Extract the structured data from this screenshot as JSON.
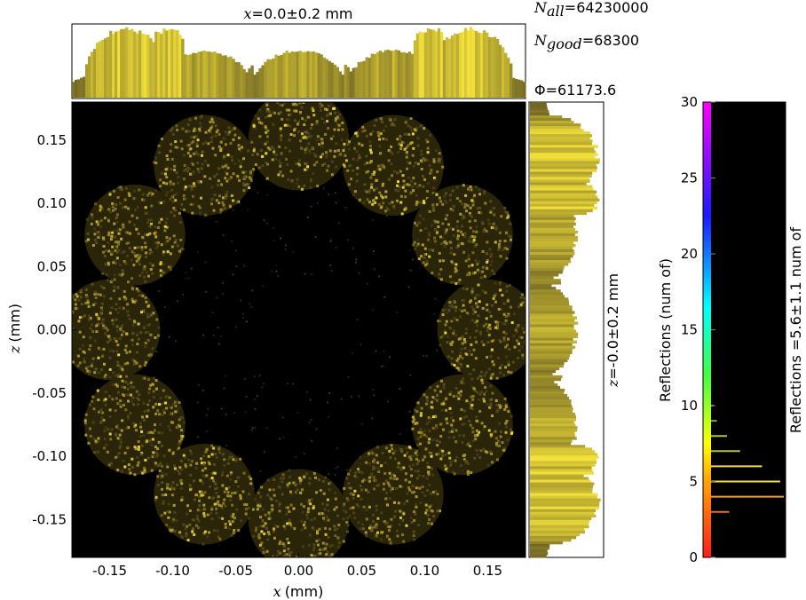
{
  "chart_data": {
    "type": "heatmap",
    "main": {
      "xlabel_var": "x",
      "xlabel_unit": "(mm)",
      "ylabel_var": "z",
      "ylabel_unit": "(mm)",
      "xlim": [
        -0.18,
        0.18
      ],
      "ylim": [
        -0.18,
        0.18
      ],
      "xticks": [
        -0.15,
        -0.1,
        -0.05,
        0.0,
        0.05,
        0.1,
        0.15
      ],
      "xtick_labels": [
        "-0.15",
        "-0.10",
        "-0.05",
        "0.00",
        "0.05",
        "0.10",
        "0.15"
      ],
      "yticks": [
        0.15,
        0.1,
        0.05,
        0.0,
        -0.05,
        -0.1,
        -0.15
      ],
      "ytick_labels": [
        "0.15",
        "0.10",
        "0.05",
        "0.00",
        "-0.05",
        "-0.10",
        "-0.15"
      ],
      "pattern_centers": [
        [
          0.0,
          0.15
        ],
        [
          0.075,
          0.13
        ],
        [
          0.13,
          0.075
        ],
        [
          0.15,
          0.0
        ],
        [
          0.13,
          -0.075
        ],
        [
          0.075,
          -0.13
        ],
        [
          0.0,
          -0.15
        ],
        [
          -0.075,
          -0.13
        ],
        [
          -0.13,
          -0.075
        ],
        [
          -0.15,
          0.0
        ],
        [
          -0.13,
          0.075
        ],
        [
          -0.075,
          0.13
        ]
      ],
      "pattern_radius": 0.04,
      "background": "#000000"
    },
    "top_histogram": {
      "title_var": "x",
      "title_rest": "=0.0±0.2 mm"
    },
    "side_histogram": {
      "label_var": "z",
      "label_rest": "=-0.0±0.2 mm"
    },
    "stats": {
      "n_all_sym": "N",
      "n_all_sub": "all",
      "n_all_val": "=64230000",
      "n_good_sym": "N",
      "n_good_sub": "good",
      "n_good_val": "=68300",
      "phi_sym": "Φ",
      "phi_val": "=61173.6"
    },
    "colorbar": {
      "ylabel": "Reflections (num of)",
      "ylim": [
        0,
        30
      ],
      "ticks": [
        0,
        5,
        10,
        15,
        20,
        25,
        30
      ],
      "tick_labels": [
        "0",
        "5",
        "10",
        "15",
        "20",
        "25",
        "30"
      ],
      "side_label": "Reflections =5.6±1.1 num of",
      "histogram": [
        {
          "level": 3,
          "count": 0.25
        },
        {
          "level": 4,
          "count": 1.0
        },
        {
          "level": 5,
          "count": 0.95
        },
        {
          "level": 6,
          "count": 0.7
        },
        {
          "level": 7,
          "count": 0.4
        },
        {
          "level": 8,
          "count": 0.22
        },
        {
          "level": 9,
          "count": 0.08
        },
        {
          "level": 10,
          "count": 0.03
        }
      ]
    },
    "colors": {
      "data_hot": "#f2e03a",
      "data_mid": "#b7a22e",
      "data_dark": "#5a5020"
    }
  }
}
